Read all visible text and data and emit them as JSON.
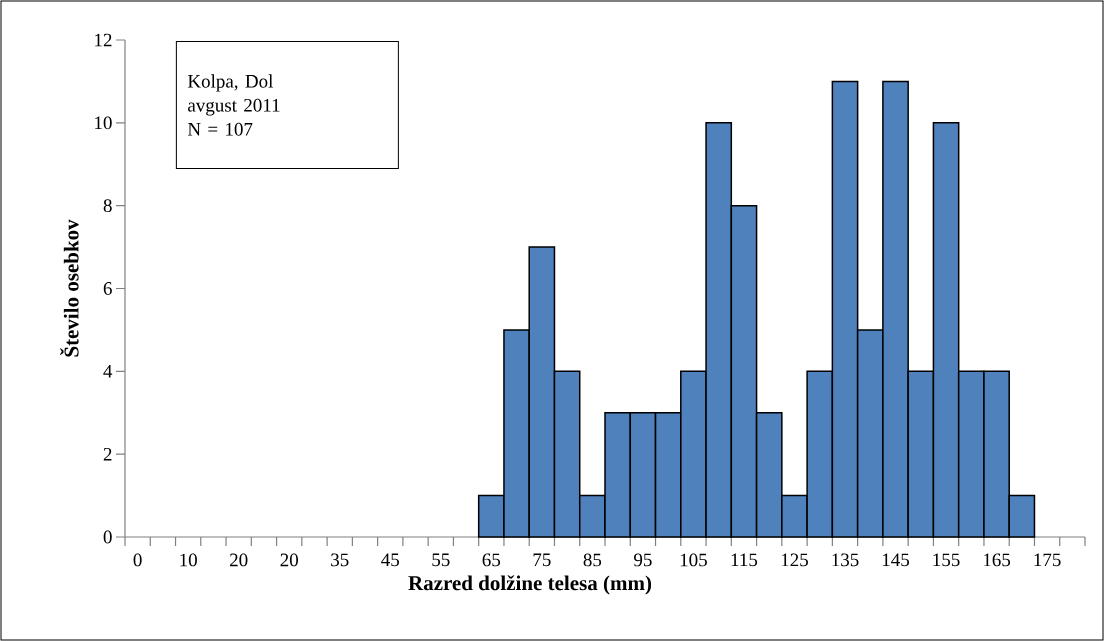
{
  "chart_data": {
    "type": "bar",
    "xlabel": "Razred dolžine telesa (mm)",
    "ylabel": "Število osebkov",
    "categories": [
      "0",
      null,
      "10",
      null,
      "20",
      null,
      "20",
      null,
      "35",
      null,
      "45",
      null,
      "55",
      null,
      "65",
      null,
      "75",
      null,
      "85",
      null,
      "95",
      null,
      "105",
      null,
      "115",
      null,
      "125",
      null,
      "135",
      null,
      "145",
      null,
      "155",
      null,
      "165",
      null,
      "175",
      null
    ],
    "values": [
      null,
      null,
      null,
      null,
      null,
      null,
      null,
      null,
      null,
      null,
      null,
      null,
      null,
      null,
      1,
      5,
      7,
      4,
      1,
      3,
      3,
      3,
      4,
      10,
      8,
      3,
      1,
      4,
      11,
      5,
      11,
      4,
      10,
      4,
      4,
      1,
      null,
      null
    ],
    "color": "#4f81bd",
    "ylim": [
      0,
      12
    ],
    "yticks": [
      0,
      2,
      4,
      6,
      8,
      10,
      12
    ],
    "grid": false,
    "annotations": [
      "Kolpa, Dol",
      "avgust 2011",
      "N = 107"
    ]
  }
}
